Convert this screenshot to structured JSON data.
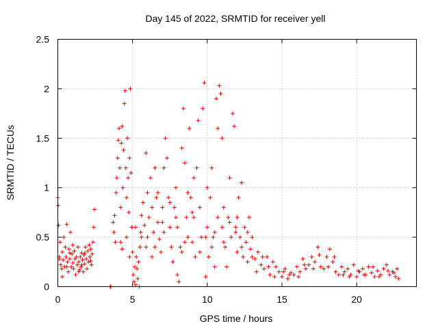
{
  "chart_data": {
    "type": "scatter",
    "title": "Day 145 of 2022, SRMTID for receiver yell",
    "xlabel": "GPS time / hours",
    "ylabel": "SRMTID / TECUs",
    "xlim": [
      0,
      24
    ],
    "ylim": [
      0,
      2.5
    ],
    "x_ticks": [
      0,
      5,
      10,
      15,
      20
    ],
    "x_tick_labels": [
      "0",
      "5",
      "10",
      "15",
      "20"
    ],
    "y_ticks": [
      0,
      0.5,
      1,
      1.5,
      2,
      2.5
    ],
    "y_tick_labels": [
      "0",
      "0.5",
      "1",
      "1.5",
      "2",
      "2.5"
    ],
    "grid": true,
    "marker": "+",
    "color": "#e00000",
    "series": [
      {
        "name": "SRMTID",
        "points": [
          [
            0.0,
            0.9
          ],
          [
            0.02,
            0.82
          ],
          [
            0.05,
            0.62
          ],
          [
            0.1,
            0.3
          ],
          [
            0.15,
            0.45
          ],
          [
            0.2,
            0.22
          ],
          [
            0.25,
            0.18
          ],
          [
            0.3,
            0.35
          ],
          [
            0.35,
            0.27
          ],
          [
            0.4,
            0.5
          ],
          [
            0.45,
            0.2
          ],
          [
            0.5,
            0.4
          ],
          [
            0.55,
            0.3
          ],
          [
            0.6,
            0.63
          ],
          [
            0.65,
            0.25
          ],
          [
            0.7,
            0.15
          ],
          [
            0.75,
            0.38
          ],
          [
            0.8,
            0.28
          ],
          [
            0.85,
            0.55
          ],
          [
            0.9,
            0.2
          ],
          [
            0.95,
            0.33
          ],
          [
            1.0,
            0.24
          ],
          [
            1.05,
            0.18
          ],
          [
            1.1,
            0.36
          ],
          [
            1.15,
            0.28
          ],
          [
            1.2,
            0.12
          ],
          [
            1.25,
            0.3
          ],
          [
            1.3,
            0.22
          ],
          [
            1.35,
            0.4
          ],
          [
            1.4,
            0.25
          ],
          [
            1.45,
            0.17
          ],
          [
            1.5,
            0.3
          ],
          [
            1.55,
            0.2
          ],
          [
            1.6,
            0.34
          ],
          [
            1.65,
            0.27
          ],
          [
            1.7,
            0.15
          ],
          [
            1.75,
            0.32
          ],
          [
            1.8,
            0.23
          ],
          [
            1.85,
            0.4
          ],
          [
            1.9,
            0.28
          ],
          [
            1.95,
            0.18
          ],
          [
            2.0,
            0.36
          ],
          [
            2.05,
            0.25
          ],
          [
            2.1,
            0.42
          ],
          [
            2.15,
            0.3
          ],
          [
            2.2,
            0.38
          ],
          [
            2.25,
            0.22
          ],
          [
            2.3,
            0.33
          ],
          [
            2.35,
            0.45
          ],
          [
            2.4,
            0.6
          ],
          [
            2.45,
            0.78
          ],
          [
            0.3,
            0.1
          ],
          [
            0.6,
            0.2
          ],
          [
            1.0,
            0.42
          ],
          [
            1.4,
            0.15
          ],
          [
            1.8,
            0.34
          ],
          [
            2.2,
            0.26
          ],
          [
            0.1,
            0.28
          ],
          [
            0.8,
            0.34
          ],
          [
            1.6,
            0.22
          ],
          [
            3.5,
            0.0
          ],
          [
            3.55,
            0.0
          ],
          [
            3.7,
            0.65
          ],
          [
            3.75,
            0.55
          ],
          [
            3.8,
            0.72
          ],
          [
            3.85,
            0.45
          ],
          [
            3.9,
            0.95
          ],
          [
            3.95,
            1.1
          ],
          [
            4.0,
            1.3
          ],
          [
            4.05,
            1.48
          ],
          [
            4.1,
            1.6
          ],
          [
            4.15,
            1.2
          ],
          [
            4.2,
            0.8
          ],
          [
            4.25,
            1.45
          ],
          [
            4.3,
            1.62
          ],
          [
            4.35,
            1.0
          ],
          [
            4.4,
            1.38
          ],
          [
            4.45,
            1.85
          ],
          [
            4.5,
            1.98
          ],
          [
            4.55,
            1.2
          ],
          [
            4.6,
            0.9
          ],
          [
            4.65,
            1.5
          ],
          [
            4.7,
            1.1
          ],
          [
            4.75,
            0.75
          ],
          [
            4.8,
            1.3
          ],
          [
            4.85,
            2.0
          ],
          [
            4.9,
            1.15
          ],
          [
            4.95,
            0.6
          ],
          [
            5.0,
            0.35
          ],
          [
            5.05,
            0.12
          ],
          [
            5.1,
            0.05
          ],
          [
            5.15,
            0.2
          ],
          [
            5.2,
            0.02
          ],
          [
            5.25,
            0.3
          ],
          [
            5.3,
            0.18
          ],
          [
            5.35,
            0.08
          ],
          [
            5.4,
            0.25
          ],
          [
            5.45,
            0.0
          ],
          [
            5.5,
            0.4
          ],
          [
            5.55,
            0.55
          ],
          [
            4.2,
            0.45
          ],
          [
            4.3,
            0.38
          ],
          [
            4.6,
            0.5
          ],
          [
            4.8,
            0.3
          ],
          [
            5.2,
            0.6
          ],
          [
            5.6,
            0.72
          ],
          [
            5.7,
            0.85
          ],
          [
            5.8,
            0.62
          ],
          [
            5.9,
            1.35
          ],
          [
            6.0,
            0.95
          ],
          [
            6.1,
            0.7
          ],
          [
            6.2,
            1.1
          ],
          [
            6.3,
            0.8
          ],
          [
            6.4,
            0.55
          ],
          [
            6.5,
            1.2
          ],
          [
            6.6,
            0.9
          ],
          [
            6.7,
            0.65
          ],
          [
            6.8,
            0.48
          ],
          [
            6.9,
            0.35
          ],
          [
            7.0,
            0.8
          ],
          [
            7.1,
            1.2
          ],
          [
            7.2,
            1.5
          ],
          [
            7.3,
            1.3
          ],
          [
            7.4,
            0.9
          ],
          [
            7.5,
            0.6
          ],
          [
            7.6,
            0.4
          ],
          [
            7.7,
            0.25
          ],
          [
            7.8,
            0.8
          ],
          [
            7.9,
            1.0
          ],
          [
            8.0,
            0.12
          ],
          [
            8.1,
            0.05
          ],
          [
            8.2,
            0.4
          ],
          [
            8.3,
            1.4
          ],
          [
            8.4,
            1.8
          ],
          [
            8.5,
            1.25
          ],
          [
            8.6,
            0.7
          ],
          [
            8.7,
            0.5
          ],
          [
            8.8,
            1.6
          ],
          [
            8.9,
            0.9
          ],
          [
            9.0,
            0.45
          ],
          [
            9.1,
            1.1
          ],
          [
            9.2,
            0.3
          ],
          [
            9.3,
            1.2
          ],
          [
            9.4,
            1.68
          ],
          [
            9.5,
            0.8
          ],
          [
            9.6,
            0.5
          ],
          [
            9.7,
            1.8
          ],
          [
            9.8,
            2.06
          ],
          [
            9.9,
            0.1
          ],
          [
            10.0,
            0.6
          ],
          [
            10.1,
            0.3
          ],
          [
            10.2,
            0.9
          ],
          [
            10.3,
            1.2
          ],
          [
            10.4,
            0.5
          ],
          [
            10.5,
            0.2
          ],
          [
            10.6,
            1.9
          ],
          [
            10.7,
            1.6
          ],
          [
            10.8,
            2.03
          ],
          [
            10.9,
            1.95
          ],
          [
            11.0,
            1.5
          ],
          [
            11.1,
            0.8
          ],
          [
            11.2,
            0.4
          ],
          [
            11.3,
            0.2
          ],
          [
            11.4,
            0.7
          ],
          [
            11.5,
            1.1
          ],
          [
            11.6,
            0.5
          ],
          [
            11.7,
            1.75
          ],
          [
            11.8,
            1.62
          ],
          [
            11.9,
            0.6
          ],
          [
            12.0,
            0.35
          ],
          [
            12.1,
            0.9
          ],
          [
            12.2,
            0.5
          ],
          [
            12.3,
            1.05
          ],
          [
            12.4,
            0.3
          ],
          [
            12.5,
            0.6
          ],
          [
            12.6,
            0.45
          ],
          [
            12.7,
            0.25
          ],
          [
            12.8,
            0.7
          ],
          [
            12.9,
            0.38
          ],
          [
            13.0,
            0.5
          ],
          [
            5.6,
            0.5
          ],
          [
            5.9,
            0.4
          ],
          [
            6.3,
            0.3
          ],
          [
            6.7,
            0.95
          ],
          [
            7.1,
            0.55
          ],
          [
            7.5,
            0.85
          ],
          [
            7.9,
            0.7
          ],
          [
            8.3,
            0.35
          ],
          [
            8.7,
            0.95
          ],
          [
            9.1,
            0.7
          ],
          [
            9.5,
            0.35
          ],
          [
            9.9,
            0.5
          ],
          [
            10.3,
            0.4
          ],
          [
            10.7,
            0.7
          ],
          [
            11.1,
            0.45
          ],
          [
            11.5,
            0.65
          ],
          [
            11.9,
            0.55
          ],
          [
            12.3,
            0.4
          ],
          [
            12.7,
            0.55
          ],
          [
            13.0,
            0.3
          ],
          [
            6.0,
            0.5
          ],
          [
            7.0,
            0.65
          ],
          [
            8.0,
            0.6
          ],
          [
            9.0,
            0.75
          ],
          [
            10.0,
            1.0
          ],
          [
            11.0,
            0.6
          ],
          [
            12.0,
            0.7
          ],
          [
            6.5,
            0.4
          ],
          [
            8.5,
            0.45
          ],
          [
            10.5,
            0.55
          ],
          [
            13.2,
            0.28
          ],
          [
            13.4,
            0.35
          ],
          [
            13.6,
            0.22
          ],
          [
            13.8,
            0.18
          ],
          [
            14.0,
            0.3
          ],
          [
            14.2,
            0.12
          ],
          [
            14.4,
            0.25
          ],
          [
            14.6,
            0.2
          ],
          [
            14.8,
            0.15
          ],
          [
            15.0,
            0.1
          ],
          [
            15.2,
            0.18
          ],
          [
            15.4,
            0.08
          ],
          [
            15.6,
            0.14
          ],
          [
            15.8,
            0.12
          ],
          [
            16.0,
            0.2
          ],
          [
            16.2,
            0.15
          ],
          [
            16.4,
            0.28
          ],
          [
            16.6,
            0.18
          ],
          [
            16.8,
            0.22
          ],
          [
            17.0,
            0.3
          ],
          [
            17.2,
            0.25
          ],
          [
            17.4,
            0.4
          ],
          [
            17.6,
            0.2
          ],
          [
            17.8,
            0.18
          ],
          [
            18.0,
            0.3
          ],
          [
            18.2,
            0.38
          ],
          [
            18.4,
            0.25
          ],
          [
            18.6,
            0.15
          ],
          [
            18.8,
            0.12
          ],
          [
            19.0,
            0.2
          ],
          [
            19.2,
            0.15
          ],
          [
            19.4,
            0.18
          ],
          [
            19.6,
            0.12
          ],
          [
            19.8,
            0.22
          ],
          [
            20.0,
            0.1
          ],
          [
            20.2,
            0.15
          ],
          [
            20.4,
            0.18
          ],
          [
            20.6,
            0.12
          ],
          [
            20.8,
            0.2
          ],
          [
            21.0,
            0.14
          ],
          [
            21.2,
            0.1
          ],
          [
            21.4,
            0.16
          ],
          [
            21.6,
            0.12
          ],
          [
            21.8,
            0.18
          ],
          [
            22.0,
            0.22
          ],
          [
            22.2,
            0.12
          ],
          [
            22.4,
            0.15
          ],
          [
            22.6,
            0.1
          ],
          [
            22.7,
            0.18
          ],
          [
            22.8,
            0.08
          ],
          [
            13.3,
            0.15
          ],
          [
            13.7,
            0.3
          ],
          [
            14.1,
            0.2
          ],
          [
            14.5,
            0.1
          ],
          [
            15.1,
            0.15
          ],
          [
            15.5,
            0.12
          ],
          [
            16.1,
            0.1
          ],
          [
            16.5,
            0.22
          ],
          [
            17.1,
            0.18
          ],
          [
            17.5,
            0.32
          ],
          [
            18.1,
            0.2
          ],
          [
            18.5,
            0.3
          ],
          [
            19.1,
            0.12
          ],
          [
            19.5,
            0.1
          ],
          [
            20.1,
            0.16
          ],
          [
            20.5,
            0.12
          ],
          [
            21.1,
            0.2
          ],
          [
            21.5,
            0.1
          ],
          [
            22.1,
            0.16
          ],
          [
            22.5,
            0.14
          ]
        ]
      }
    ]
  }
}
